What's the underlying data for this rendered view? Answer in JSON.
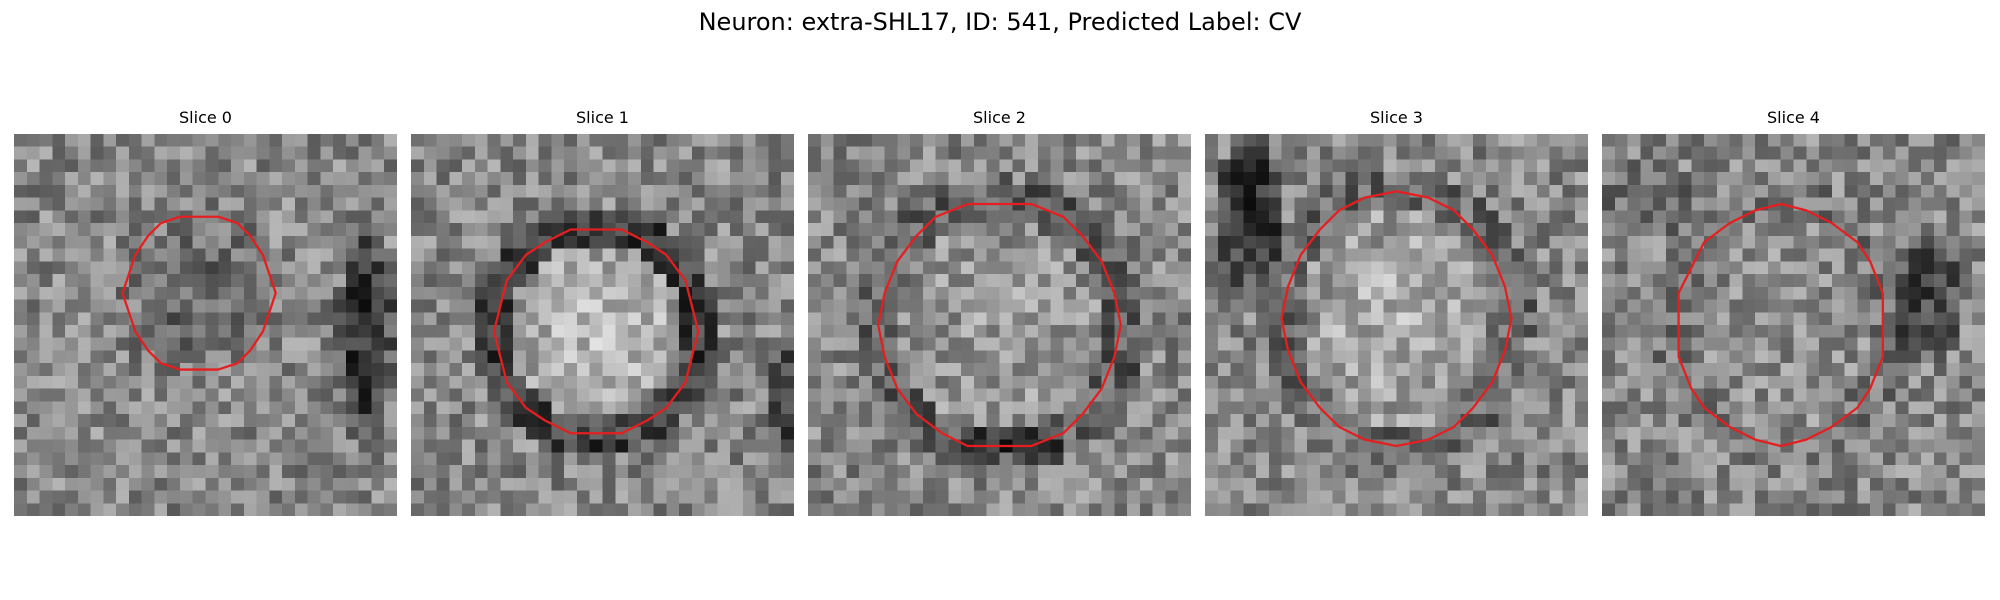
{
  "figure": {
    "title": "Neuron: extra-SHL17, ID: 541, Predicted Label: CV"
  },
  "colors": {
    "outline": "#e51f1f",
    "background": "#ffffff"
  },
  "panels": [
    {
      "title": "Slice 0"
    },
    {
      "title": "Slice 1"
    },
    {
      "title": "Slice 2"
    },
    {
      "title": "Slice 3"
    },
    {
      "title": "Slice 4"
    }
  ]
}
